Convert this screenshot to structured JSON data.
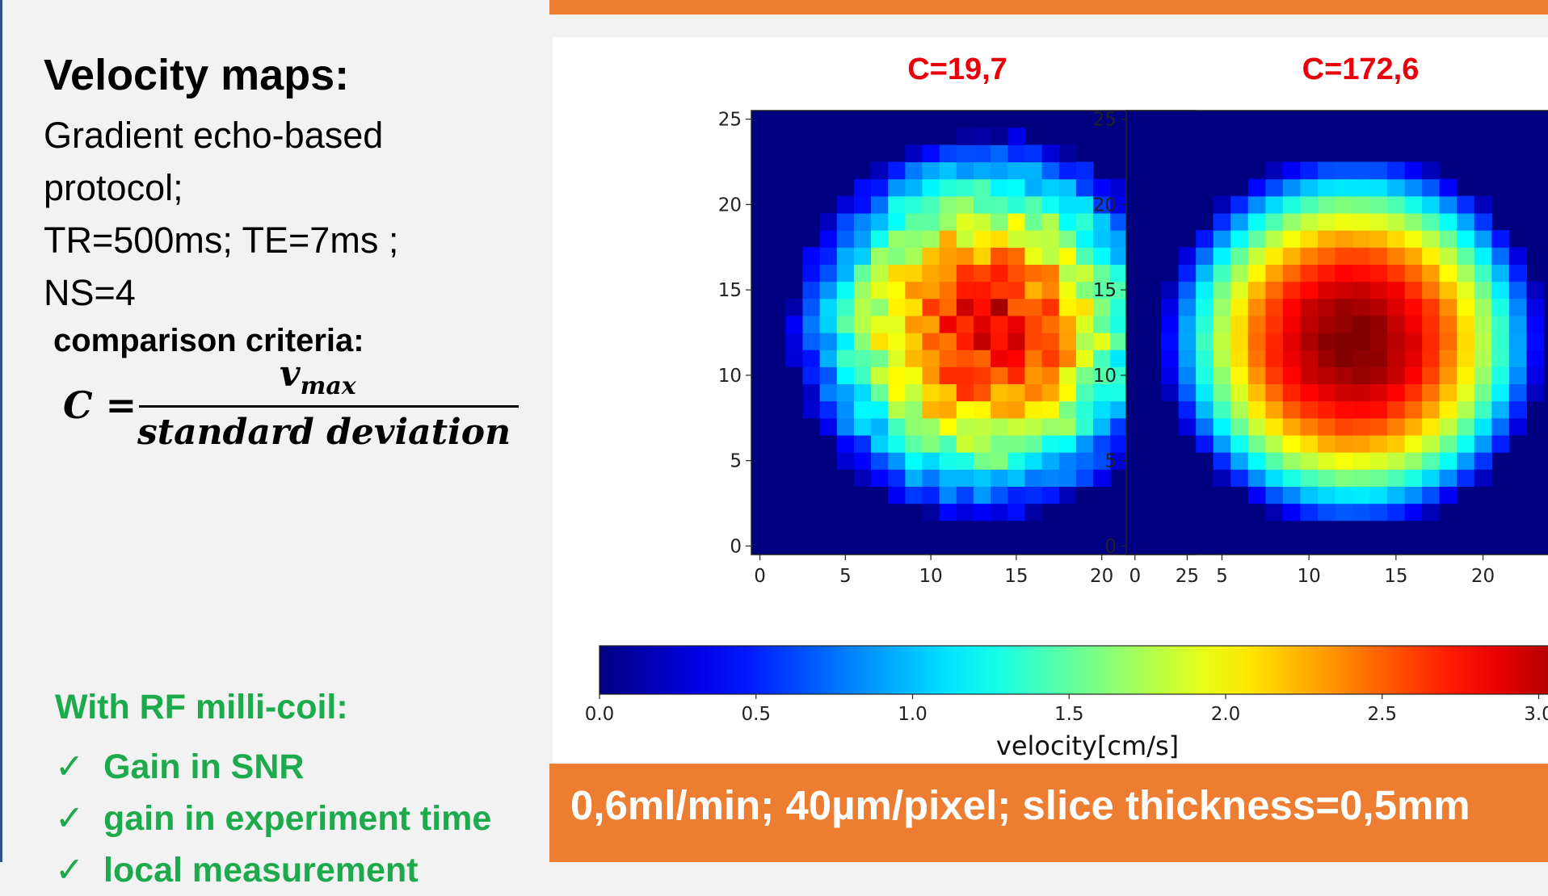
{
  "left_panel": {
    "heading": "Velocity maps:",
    "protocol_line1": "Gradient echo-based",
    "protocol_line2": "protocol;",
    "protocol_line3": "TR=500ms; TE=7ms ; NS=4",
    "criteria_label": "comparison criteria:",
    "formula": {
      "lhs": "C =",
      "numerator": "v",
      "numerator_sub": "max",
      "denominator": "standard deviation"
    },
    "rf_title": "With RF milli-coil:",
    "rf_items": [
      {
        "check": "✓",
        "text": "Gain in SNR"
      },
      {
        "check": "✓",
        "text": "gain in experiment time"
      },
      {
        "check": "✓",
        "text": "local measurement"
      }
    ]
  },
  "banner_bottom": "0,6ml/min; 40µm/pixel; slice thickness=0,5mm",
  "colors": {
    "title_red": "#e8000b",
    "green": "#1daa4c",
    "banner_orange": "#ed7d31",
    "map_background": "#000080"
  },
  "chart_data": [
    {
      "type": "heatmap",
      "title": "C=19,7",
      "x_ticks": [
        "0",
        "5",
        "10",
        "15",
        "20",
        "25"
      ],
      "y_ticks": [
        "0",
        "5",
        "10",
        "15",
        "20",
        "25"
      ],
      "xlim": [
        0,
        26
      ],
      "ylim": [
        0,
        26
      ],
      "grid": 26,
      "colormap": "jet",
      "vmin": 0,
      "vmax": 3.2,
      "center": [
        13.2,
        12.8
      ],
      "radius": 11.4,
      "peak": 2.75,
      "profile_exponent": 1.6,
      "noise_level": 0.35
    },
    {
      "type": "heatmap",
      "title": "C=172,6",
      "x_ticks": [
        "0",
        "5",
        "10",
        "15",
        "20"
      ],
      "y_ticks": [
        "0",
        "5",
        "10",
        "15",
        "20",
        "25"
      ],
      "xlim": [
        0,
        26
      ],
      "ylim": [
        0,
        26
      ],
      "grid": 26,
      "colormap": "jet",
      "vmin": 0,
      "vmax": 3.2,
      "center": [
        12.5,
        12.0
      ],
      "radius": 11.0,
      "peak": 3.05,
      "profile_exponent": 2.0,
      "noise_level": 0.04
    }
  ],
  "colorbar": {
    "ticks": [
      "0.0",
      "0.5",
      "1.0",
      "1.5",
      "2.0",
      "2.5",
      "3.0"
    ],
    "tick_values": [
      0,
      0.5,
      1.0,
      1.5,
      2.0,
      2.5,
      3.0
    ],
    "vmin": 0,
    "vmax": 3.2,
    "label": "velocity[cm/s]"
  }
}
